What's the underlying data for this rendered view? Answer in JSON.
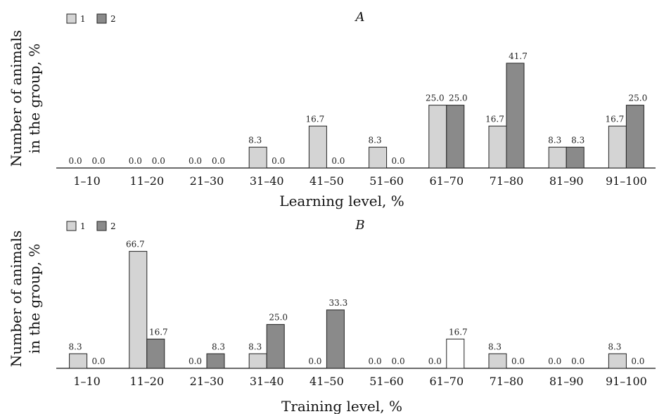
{
  "colors": {
    "series1": "#d4d4d4",
    "series2": "#8a8a8a",
    "series2_zero_base": "#ffffff"
  },
  "chart_data": [
    {
      "type": "bar",
      "title": "A",
      "xlabel": "Learning level, %",
      "ylabel": [
        "Number of animals",
        "in the group, %"
      ],
      "categories": [
        "1–10",
        "11–20",
        "21–30",
        "31–40",
        "41–50",
        "51–60",
        "61–70",
        "71–80",
        "81–90",
        "91–100"
      ],
      "series": [
        {
          "name": "1",
          "values": [
            0.0,
            0.0,
            0.0,
            8.3,
            16.7,
            8.3,
            25.0,
            16.7,
            8.3,
            16.7
          ]
        },
        {
          "name": "2",
          "values": [
            0.0,
            0.0,
            0.0,
            0.0,
            0.0,
            0.0,
            25.0,
            41.7,
            8.3,
            25.0
          ]
        }
      ],
      "value_labels": [
        [
          "0.0",
          "0.0",
          "0.0",
          "8.3",
          "16.7",
          "8.3",
          "25.0",
          "16.7",
          "8.3",
          "16.7"
        ],
        [
          "0.0",
          "0.0",
          "0.0",
          "0.0",
          "0.0",
          "0.0",
          "25.0",
          "41.7",
          "8.3",
          "25.0"
        ]
      ],
      "ylim": [
        0,
        45
      ],
      "legend": "top-left",
      "grid": false
    },
    {
      "type": "bar",
      "title": "B",
      "xlabel": "Training level, %",
      "ylabel": [
        "Number of animals",
        "in the group, %"
      ],
      "categories": [
        "1–10",
        "11–20",
        "21–30",
        "31–40",
        "41–50",
        "51–60",
        "61–70",
        "71–80",
        "81–90",
        "91–100"
      ],
      "series": [
        {
          "name": "1",
          "values": [
            8.3,
            66.7,
            0.0,
            8.3,
            0.0,
            0.0,
            0.0,
            8.3,
            0.0,
            8.3
          ]
        },
        {
          "name": "2",
          "values": [
            0.0,
            16.7,
            8.3,
            25.0,
            33.3,
            0.0,
            16.7,
            0.0,
            0.0,
            0.0
          ]
        }
      ],
      "value_labels": [
        [
          "8.3",
          "66.7",
          "0.0",
          "8.3",
          "0.0",
          "0.0",
          "0.0",
          "8.3",
          "0.0",
          "8.3"
        ],
        [
          "0.0",
          "16.7",
          "8.3",
          "25.0",
          "33.3",
          "0.0",
          "16.7",
          "0.0",
          "0.0",
          "0.0"
        ]
      ],
      "white_bars": [
        [
          1,
          6
        ]
      ],
      "ylim": [
        0,
        72
      ],
      "legend": "top-left",
      "grid": false
    }
  ]
}
